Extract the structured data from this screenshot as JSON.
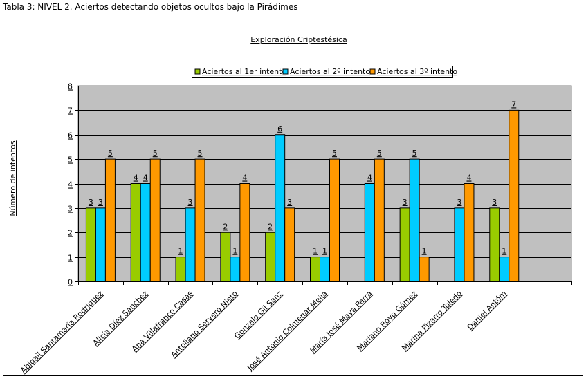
{
  "caption": "Tabla 3: NIVEL 2. Aciertos detectando objetos ocultos bajo la Pirádimes",
  "chart_data": {
    "type": "bar",
    "title": "Exploración Criptestésica",
    "xlabel": "",
    "ylabel": "Número de intentos",
    "ylim": [
      0,
      8
    ],
    "yticks": [
      0,
      1,
      2,
      3,
      4,
      5,
      6,
      7,
      8
    ],
    "grid": true,
    "legend_position": "top-center",
    "categories": [
      "Abigail Santamaría Rodríguez",
      "Alicia Díez Sánchez",
      "Ana Villafranco Casas",
      "Antoliano Servero Nieto",
      "Gonzalo Gil Sanz",
      "José Antonio Colmenar Mejía",
      "María José Maya Parra",
      "Mariano Royo Gómez",
      "Marina Pizarro Toledo",
      "Daniel Antóm",
      ""
    ],
    "series": [
      {
        "name": "Aciertos al 1er intento",
        "color": "#99cc00",
        "values": [
          3,
          4,
          1,
          2,
          2,
          1,
          null,
          3,
          null,
          3,
          null
        ]
      },
      {
        "name": "Aciertos al 2º intento",
        "color": "#00ccff",
        "values": [
          3,
          4,
          3,
          1,
          6,
          1,
          4,
          5,
          3,
          1,
          null
        ]
      },
      {
        "name": "Aciertos al 3º intento",
        "color": "#ff9900",
        "values": [
          5,
          5,
          5,
          4,
          3,
          5,
          5,
          1,
          4,
          7,
          null
        ]
      }
    ]
  }
}
